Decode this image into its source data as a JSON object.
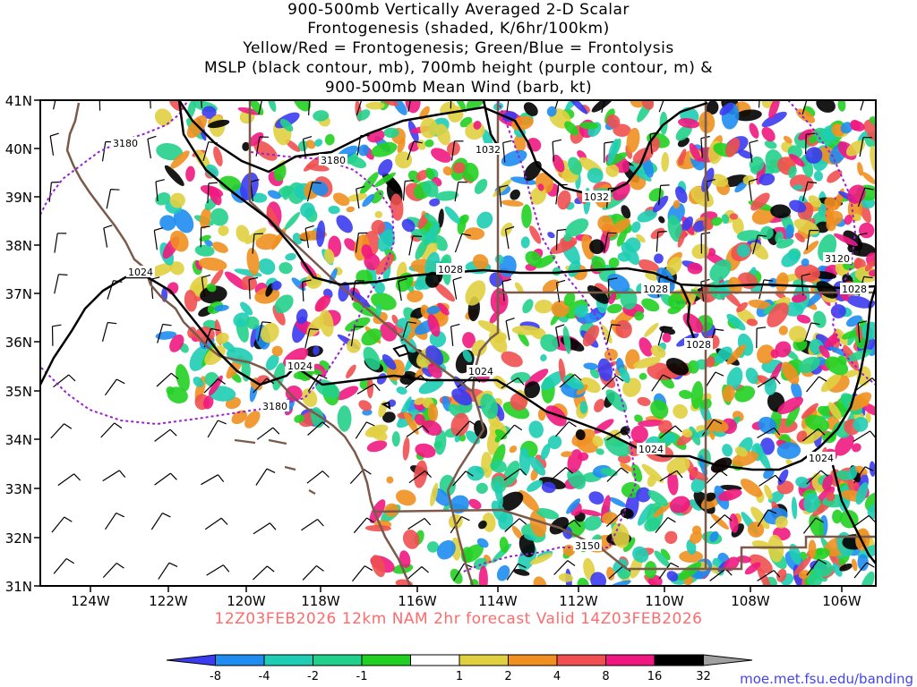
{
  "title_lines": [
    "900-500mb Vertically Averaged 2-D Scalar",
    "Frontogenesis (shaded, K/6hr/100km)",
    "Yellow/Red = Frontogenesis;  Green/Blue = Frontolysis",
    "MSLP (black contour, mb), 700mb height (purple contour, m) &",
    "900-500mb Mean Wind (barb, kt)"
  ],
  "valid_text": "12Z03FEB2026 12km NAM 2hr forecast Valid 14Z03FEB2026",
  "credit": "moe.met.fsu.edu/banding",
  "axes": {
    "lat_labels": [
      "41N",
      "40N",
      "39N",
      "38N",
      "37N",
      "36N",
      "35N",
      "34N",
      "33N",
      "32N",
      "31N"
    ],
    "lon_labels": [
      "124W",
      "122W",
      "120W",
      "118W",
      "116W",
      "114W",
      "112W",
      "110W",
      "108W",
      "106W"
    ]
  },
  "contour_labels": {
    "mslp": [
      "1032",
      "1032",
      "1028",
      "1028",
      "1028",
      "1028",
      "1024",
      "1024",
      "1024",
      "1024",
      "1024"
    ],
    "height700": [
      "3180",
      "3180",
      "3180",
      "3120",
      "3150"
    ]
  },
  "colorbar": {
    "labels": [
      "-8",
      "-4",
      "-2",
      "-1",
      "1",
      "2",
      "4",
      "8",
      "16",
      "32"
    ],
    "colors": [
      "#3b3bf0",
      "#1e8cf0",
      "#1ecdb4",
      "#22d08c",
      "#22d022",
      "#ffffff",
      "#e0d040",
      "#f09020",
      "#f05050",
      "#f01880",
      "#000000",
      "#a0a0a0"
    ]
  }
}
